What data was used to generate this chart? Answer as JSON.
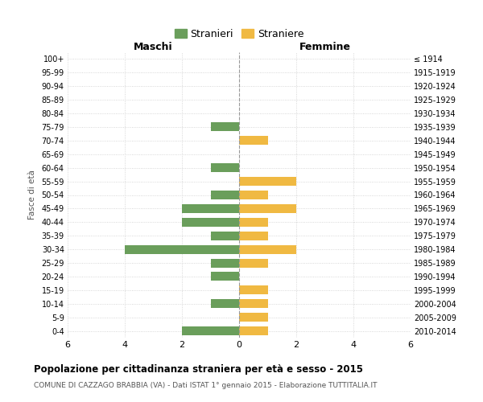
{
  "age_groups": [
    "100+",
    "95-99",
    "90-94",
    "85-89",
    "80-84",
    "75-79",
    "70-74",
    "65-69",
    "60-64",
    "55-59",
    "50-54",
    "45-49",
    "40-44",
    "35-39",
    "30-34",
    "25-29",
    "20-24",
    "15-19",
    "10-14",
    "5-9",
    "0-4"
  ],
  "birth_years": [
    "≤ 1914",
    "1915-1919",
    "1920-1924",
    "1925-1929",
    "1930-1934",
    "1935-1939",
    "1940-1944",
    "1945-1949",
    "1950-1954",
    "1955-1959",
    "1960-1964",
    "1965-1969",
    "1970-1974",
    "1975-1979",
    "1980-1984",
    "1985-1989",
    "1990-1994",
    "1995-1999",
    "2000-2004",
    "2005-2009",
    "2010-2014"
  ],
  "males": [
    0,
    0,
    0,
    0,
    0,
    1,
    0,
    0,
    1,
    0,
    1,
    2,
    2,
    1,
    4,
    1,
    1,
    0,
    1,
    0,
    2
  ],
  "females": [
    0,
    0,
    0,
    0,
    0,
    0,
    1,
    0,
    0,
    2,
    1,
    2,
    1,
    1,
    2,
    1,
    0,
    1,
    1,
    1,
    1
  ],
  "male_color": "#6a9e5b",
  "female_color": "#f0b942",
  "title": "Popolazione per cittadinanza straniera per età e sesso - 2015",
  "subtitle": "COMUNE DI CAZZAGO BRABBIA (VA) - Dati ISTAT 1° gennaio 2015 - Elaborazione TUTTITALIA.IT",
  "ylabel_left": "Fasce di età",
  "xlabel_left": "Maschi",
  "xlabel_right": "Femmine",
  "legend_male": "Stranieri",
  "legend_female": "Straniere",
  "xlim": 6,
  "background_color": "#ffffff",
  "grid_color": "#cccccc"
}
